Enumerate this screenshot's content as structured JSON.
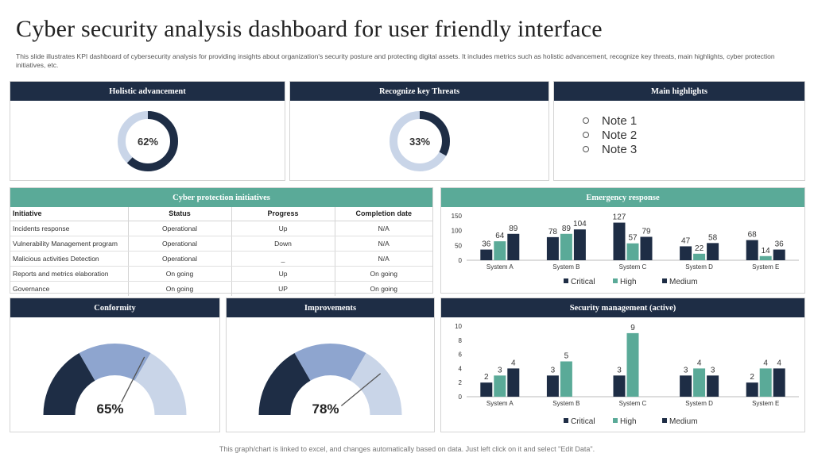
{
  "header": {
    "title": "Cyber security analysis dashboard for user friendly interface",
    "subtitle": "This slide illustrates KPI dashboard of cybersecurity analysis for providing insights about organization's security posture and protecting digital assets. It includes metrics such as holistic advancement, recognize key threats, main highlights, cyber protection initiatives, etc."
  },
  "footer": "This graph/chart is linked to excel, and changes automatically based on data. Just left click on it and select \"Edit Data\".",
  "colors": {
    "navy": "#1e2d45",
    "teal": "#5aaa98",
    "medium_blue": "#8ea5cf",
    "light_blue": "#c9d5e8",
    "donut_track": "#c9d5e8"
  },
  "holistic": {
    "title": "Holistic advancement",
    "label": "62%",
    "value": 62
  },
  "threats": {
    "title": "Recognize key Threats",
    "label": "33%",
    "value": 33
  },
  "highlights": {
    "title": "Main highlights",
    "notes": [
      "Note 1",
      "Note 2",
      "Note 3"
    ]
  },
  "initiatives": {
    "title": "Cyber protection initiatives",
    "columns": [
      "Initiative",
      "Status",
      "Progress",
      "Completion date"
    ],
    "rows": [
      [
        "Incidents response",
        "Operational",
        "Up",
        "N/A"
      ],
      [
        "Vulnerability Management  program",
        "Operational",
        "Down",
        "N/A"
      ],
      [
        "Malicious activities Detection",
        "Operational",
        "_",
        "N/A"
      ],
      [
        "Reports and metrics elaboration",
        "On going",
        "Up",
        "On going"
      ],
      [
        "Governance",
        "On going",
        "UP",
        "On going"
      ]
    ]
  },
  "conformity": {
    "title": "Conformity",
    "label": "65%",
    "value": 65
  },
  "improvements": {
    "title": "Improvements",
    "label": "78%",
    "value": 78
  },
  "emergency": {
    "title": "Emergency response"
  },
  "security": {
    "title": "Security management (active)"
  },
  "chart_data": [
    {
      "type": "bar",
      "title": "Emergency response",
      "categories": [
        "System A",
        "System B",
        "System C",
        "System D",
        "System E"
      ],
      "series": [
        {
          "name": "Critical",
          "values": [
            36,
            78,
            127,
            47,
            68
          ],
          "color": "#1e2d45"
        },
        {
          "name": "High",
          "values": [
            64,
            89,
            57,
            22,
            14
          ],
          "color": "#5aaa98"
        },
        {
          "name": "Medium",
          "values": [
            89,
            104,
            79,
            58,
            36
          ],
          "color": "#1e2d45"
        }
      ],
      "yticks": [
        0,
        50,
        100,
        150
      ],
      "ylim": [
        0,
        150
      ],
      "legend": "bottom"
    },
    {
      "type": "bar",
      "title": "Security management (active)",
      "categories": [
        "System A",
        "System B",
        "System C",
        "System D",
        "System E"
      ],
      "series": [
        {
          "name": "Critical",
          "values": [
            2,
            3,
            3,
            3,
            2
          ],
          "color": "#1e2d45"
        },
        {
          "name": "High",
          "values": [
            3,
            5,
            9,
            4,
            4
          ],
          "color": "#5aaa98"
        },
        {
          "name": "Medium",
          "values": [
            4,
            null,
            null,
            3,
            4
          ],
          "color": "#1e2d45"
        }
      ],
      "yticks": [
        0,
        2,
        4,
        6,
        8,
        10
      ],
      "ylim": [
        0,
        10
      ],
      "legend": "bottom"
    }
  ]
}
